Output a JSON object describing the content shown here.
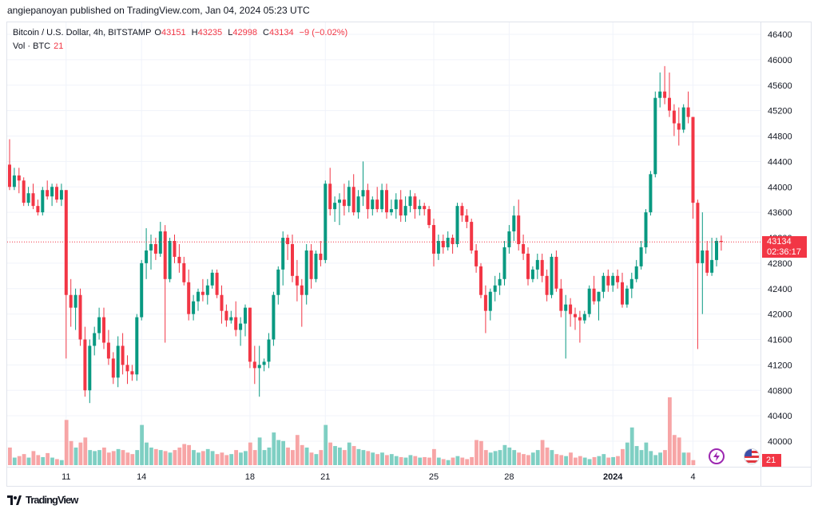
{
  "header": {
    "publisher_line": "angiepanoyan published on TradingView.com, Jan 04, 2024 05:23 UTC"
  },
  "legend": {
    "symbol": "Bitcoin / U.S. Dollar, 4h, BITSTAMP",
    "open_label": "O",
    "open": "43151",
    "high_label": "H",
    "high": "43235",
    "low_label": "L",
    "low": "42998",
    "close_label": "C",
    "close": "43134",
    "change": "−9 (−0.02%)",
    "vol_label": "Vol · BTC",
    "vol_value": "21"
  },
  "price_tag": {
    "price": "43134",
    "countdown": "02:36:17"
  },
  "volume_tag": "21",
  "footer": {
    "brand": "TradingView"
  },
  "colors": {
    "up": "#089981",
    "down": "#f23645",
    "vol_up": "#7fcfc3",
    "vol_down": "#f7a5a6",
    "grid": "#f0f3fa",
    "price_line": "#f23645"
  },
  "icons": {
    "flash": "flash-event-icon",
    "flag": "us-flag-icon",
    "logo": "tradingview-logo-icon"
  },
  "chart_data": {
    "type": "candlestick",
    "title": "Bitcoin / U.S. Dollar, 4h, BITSTAMP",
    "yticks": [
      40000,
      40400,
      40800,
      41200,
      41600,
      42000,
      42400,
      42800,
      43200,
      43600,
      44000,
      44400,
      44800,
      45200,
      45600,
      46000,
      46400
    ],
    "ylim": [
      39800,
      46600
    ],
    "xlabels": [
      {
        "i": 12,
        "label": "11"
      },
      {
        "i": 28,
        "label": "14"
      },
      {
        "i": 51,
        "label": "18"
      },
      {
        "i": 67,
        "label": "21"
      },
      {
        "i": 90,
        "label": "25"
      },
      {
        "i": 106,
        "label": "28"
      },
      {
        "i": 128,
        "label": "2024"
      },
      {
        "i": 145,
        "label": "4"
      }
    ],
    "last_price": 43134,
    "candles": [
      [
        44350,
        44750,
        43950,
        44000
      ],
      [
        44000,
        44300,
        43950,
        44180
      ],
      [
        44180,
        44300,
        43900,
        44100
      ],
      [
        44100,
        44150,
        43700,
        43750
      ],
      [
        43750,
        44000,
        43700,
        43900
      ],
      [
        43900,
        44050,
        43650,
        43700
      ],
      [
        43700,
        43800,
        43550,
        43600
      ],
      [
        43600,
        44000,
        43550,
        43950
      ],
      [
        43950,
        44100,
        43800,
        43850
      ],
      [
        43850,
        44050,
        43700,
        44000
      ],
      [
        44000,
        44050,
        43750,
        43800
      ],
      [
        43800,
        44050,
        43700,
        43950
      ],
      [
        43950,
        43950,
        41300,
        42300
      ],
      [
        42300,
        42550,
        41800,
        42100
      ],
      [
        42100,
        42400,
        41750,
        42300
      ],
      [
        42300,
        42400,
        41500,
        41600
      ],
      [
        41600,
        41800,
        40700,
        40800
      ],
      [
        40800,
        41600,
        40600,
        41500
      ],
      [
        41500,
        41800,
        41350,
        41700
      ],
      [
        41700,
        42100,
        41600,
        41950
      ],
      [
        41950,
        42100,
        41450,
        41550
      ],
      [
        41550,
        41750,
        41200,
        41300
      ],
      [
        41300,
        41400,
        40900,
        41000
      ],
      [
        41000,
        41650,
        40850,
        41500
      ],
      [
        41500,
        41700,
        41050,
        41200
      ],
      [
        41200,
        41350,
        40900,
        41100
      ],
      [
        41100,
        41200,
        40950,
        41050
      ],
      [
        41050,
        42000,
        40950,
        41950
      ],
      [
        41950,
        42850,
        41900,
        42800
      ],
      [
        42800,
        43350,
        42550,
        43000
      ],
      [
        43000,
        43250,
        42700,
        43100
      ],
      [
        43100,
        43200,
        42850,
        42950
      ],
      [
        42950,
        43450,
        42900,
        43300
      ],
      [
        43300,
        43400,
        41550,
        42550
      ],
      [
        42550,
        43200,
        42500,
        43150
      ],
      [
        43150,
        43250,
        42800,
        42900
      ],
      [
        42900,
        43100,
        42650,
        42800
      ],
      [
        42800,
        42900,
        42450,
        42500
      ],
      [
        42500,
        42700,
        41900,
        42000
      ],
      [
        42000,
        42300,
        41900,
        42200
      ],
      [
        42200,
        42400,
        42050,
        42350
      ],
      [
        42350,
        42550,
        42200,
        42300
      ],
      [
        42300,
        42550,
        42150,
        42450
      ],
      [
        42450,
        42700,
        42400,
        42650
      ],
      [
        42650,
        42700,
        42250,
        42300
      ],
      [
        42300,
        42450,
        41850,
        42050
      ],
      [
        42050,
        42150,
        41800,
        41900
      ],
      [
        41900,
        42050,
        41850,
        41950
      ],
      [
        41950,
        42200,
        41650,
        41750
      ],
      [
        41750,
        41950,
        41500,
        41850
      ],
      [
        41850,
        42150,
        41650,
        42100
      ],
      [
        42100,
        42100,
        41150,
        41250
      ],
      [
        41250,
        41500,
        40900,
        41150
      ],
      [
        41150,
        41500,
        40700,
        41200
      ],
      [
        41200,
        41300,
        41100,
        41250
      ],
      [
        41250,
        41700,
        41150,
        41600
      ],
      [
        41600,
        42350,
        41500,
        42300
      ],
      [
        42300,
        42750,
        42150,
        42700
      ],
      [
        42700,
        43300,
        42450,
        43200
      ],
      [
        43200,
        43250,
        42850,
        43100
      ],
      [
        43100,
        43250,
        42500,
        42600
      ],
      [
        42600,
        42850,
        42200,
        42450
      ],
      [
        42450,
        42550,
        41800,
        42300
      ],
      [
        42300,
        43100,
        42150,
        43000
      ],
      [
        43000,
        43100,
        42400,
        42550
      ],
      [
        42550,
        43000,
        42500,
        42950
      ],
      [
        42950,
        43150,
        42750,
        42850
      ],
      [
        42850,
        44100,
        42800,
        44050
      ],
      [
        44050,
        44300,
        43550,
        43650
      ],
      [
        43650,
        43850,
        43450,
        43750
      ],
      [
        43750,
        43900,
        43400,
        43800
      ],
      [
        43800,
        44050,
        43550,
        43700
      ],
      [
        43700,
        44100,
        43600,
        44000
      ],
      [
        44000,
        44200,
        43550,
        43600
      ],
      [
        43600,
        43950,
        43500,
        43850
      ],
      [
        43850,
        44400,
        43700,
        43950
      ],
      [
        43950,
        44050,
        43500,
        43650
      ],
      [
        43650,
        43850,
        43550,
        43800
      ],
      [
        43800,
        44000,
        43600,
        43650
      ],
      [
        43650,
        44050,
        43600,
        43950
      ],
      [
        43950,
        44050,
        43500,
        43600
      ],
      [
        43600,
        43800,
        43550,
        43650
      ],
      [
        43650,
        43900,
        43500,
        43800
      ],
      [
        43800,
        43950,
        43450,
        43550
      ],
      [
        43550,
        43850,
        43450,
        43700
      ],
      [
        43700,
        43950,
        43600,
        43850
      ],
      [
        43850,
        43900,
        43500,
        43650
      ],
      [
        43650,
        43800,
        43550,
        43700
      ],
      [
        43700,
        43750,
        43550,
        43650
      ],
      [
        43650,
        43700,
        43350,
        43400
      ],
      [
        43400,
        43500,
        42750,
        42950
      ],
      [
        42950,
        43250,
        42850,
        43150
      ],
      [
        43150,
        43250,
        42950,
        43050
      ],
      [
        43050,
        43300,
        43000,
        43200
      ],
      [
        43200,
        43250,
        42950,
        43100
      ],
      [
        43100,
        43750,
        43050,
        43700
      ],
      [
        43700,
        43750,
        43450,
        43550
      ],
      [
        43550,
        43650,
        43350,
        43450
      ],
      [
        43450,
        43500,
        42950,
        43000
      ],
      [
        43000,
        43100,
        42650,
        42750
      ],
      [
        42750,
        42800,
        42250,
        42300
      ],
      [
        42300,
        42450,
        41700,
        42050
      ],
      [
        42050,
        42400,
        41900,
        42350
      ],
      [
        42350,
        42600,
        42200,
        42450
      ],
      [
        42450,
        42650,
        42300,
        42550
      ],
      [
        42550,
        43150,
        42450,
        43050
      ],
      [
        43050,
        43400,
        42950,
        43300
      ],
      [
        43300,
        43700,
        43150,
        43550
      ],
      [
        43550,
        43800,
        43000,
        43100
      ],
      [
        43100,
        43250,
        42850,
        42950
      ],
      [
        42950,
        43050,
        42450,
        42550
      ],
      [
        42550,
        42750,
        42500,
        42700
      ],
      [
        42700,
        42950,
        42550,
        42850
      ],
      [
        42850,
        42950,
        42500,
        42600
      ],
      [
        42600,
        42700,
        42200,
        42300
      ],
      [
        42300,
        42950,
        42250,
        42900
      ],
      [
        42900,
        43000,
        42350,
        42400
      ],
      [
        42400,
        42550,
        41950,
        42050
      ],
      [
        42050,
        42300,
        41300,
        42150
      ],
      [
        42150,
        42250,
        41800,
        42000
      ],
      [
        42000,
        42100,
        41750,
        41950
      ],
      [
        41950,
        42050,
        41550,
        41900
      ],
      [
        41900,
        42050,
        41850,
        42000
      ],
      [
        42000,
        42450,
        41950,
        42400
      ],
      [
        42400,
        42600,
        42150,
        42200
      ],
      [
        42200,
        42350,
        41900,
        42350
      ],
      [
        42350,
        42650,
        42250,
        42600
      ],
      [
        42600,
        42700,
        42350,
        42450
      ],
      [
        42450,
        42650,
        42350,
        42600
      ],
      [
        42600,
        42700,
        42400,
        42500
      ],
      [
        42500,
        42650,
        42100,
        42150
      ],
      [
        42150,
        42450,
        42100,
        42400
      ],
      [
        42400,
        42650,
        42250,
        42550
      ],
      [
        42550,
        42850,
        42500,
        42750
      ],
      [
        42750,
        43150,
        42700,
        43050
      ],
      [
        43050,
        43650,
        42950,
        43600
      ],
      [
        43600,
        44250,
        43550,
        44200
      ],
      [
        44200,
        45500,
        44150,
        45400
      ],
      [
        45400,
        45800,
        45250,
        45500
      ],
      [
        45500,
        45900,
        45300,
        45400
      ],
      [
        45400,
        45800,
        45100,
        45200
      ],
      [
        45200,
        45300,
        44800,
        45000
      ],
      [
        45000,
        45250,
        44650,
        44900
      ],
      [
        44900,
        45300,
        44850,
        45250
      ],
      [
        45250,
        45500,
        45000,
        45100
      ],
      [
        45100,
        45100,
        43500,
        43750
      ],
      [
        43750,
        43800,
        41450,
        42800
      ],
      [
        42800,
        43600,
        42000,
        43000
      ],
      [
        43000,
        43150,
        42600,
        42650
      ],
      [
        42650,
        43200,
        42600,
        42850
      ],
      [
        42850,
        43200,
        42750,
        43150
      ],
      [
        43150,
        43235,
        42998,
        43134
      ]
    ],
    "volumes": [
      3.5,
      1.5,
      1.8,
      2.2,
      1.5,
      2.8,
      2.0,
      1.6,
      2.4,
      1.5,
      1.2,
      1.0,
      9.0,
      4.8,
      3.5,
      4.5,
      5.5,
      3.0,
      2.8,
      3.0,
      3.5,
      2.5,
      2.8,
      3.2,
      3.0,
      2.5,
      2.2,
      3.0,
      8.0,
      4.5,
      3.5,
      3.2,
      3.0,
      2.8,
      2.5,
      3.0,
      3.5,
      4.2,
      4.0,
      3.0,
      2.5,
      2.8,
      3.2,
      2.8,
      2.2,
      2.5,
      2.0,
      2.2,
      3.0,
      2.5,
      2.8,
      4.5,
      3.0,
      5.5,
      3.0,
      3.5,
      6.5,
      5.0,
      4.8,
      3.5,
      3.0,
      6.0,
      4.0,
      3.5,
      2.5,
      2.2,
      3.0,
      8.0,
      4.5,
      3.8,
      3.5,
      3.0,
      4.5,
      3.8,
      3.2,
      3.0,
      2.8,
      2.5,
      2.2,
      2.5,
      2.0,
      2.2,
      1.8,
      1.6,
      1.5,
      2.0,
      1.8,
      1.5,
      1.6,
      1.5,
      3.2,
      1.5,
      1.2,
      1.0,
      1.5,
      1.8,
      1.5,
      1.2,
      1.6,
      5.0,
      4.8,
      3.0,
      2.5,
      2.8,
      3.0,
      4.0,
      3.5,
      3.0,
      2.5,
      2.2,
      2.0,
      2.5,
      3.0,
      5.0,
      3.5,
      3.0,
      2.2,
      2.0,
      1.8,
      2.5,
      1.5,
      1.8,
      1.5,
      1.2,
      1.6,
      1.8,
      2.2,
      1.5,
      1.6,
      1.8,
      3.2,
      4.5,
      7.5,
      3.8,
      3.0,
      4.5,
      2.8,
      2.0,
      2.5,
      3.0,
      13.5,
      6.0,
      5.5,
      2.5,
      2.5,
      1.0
    ]
  }
}
